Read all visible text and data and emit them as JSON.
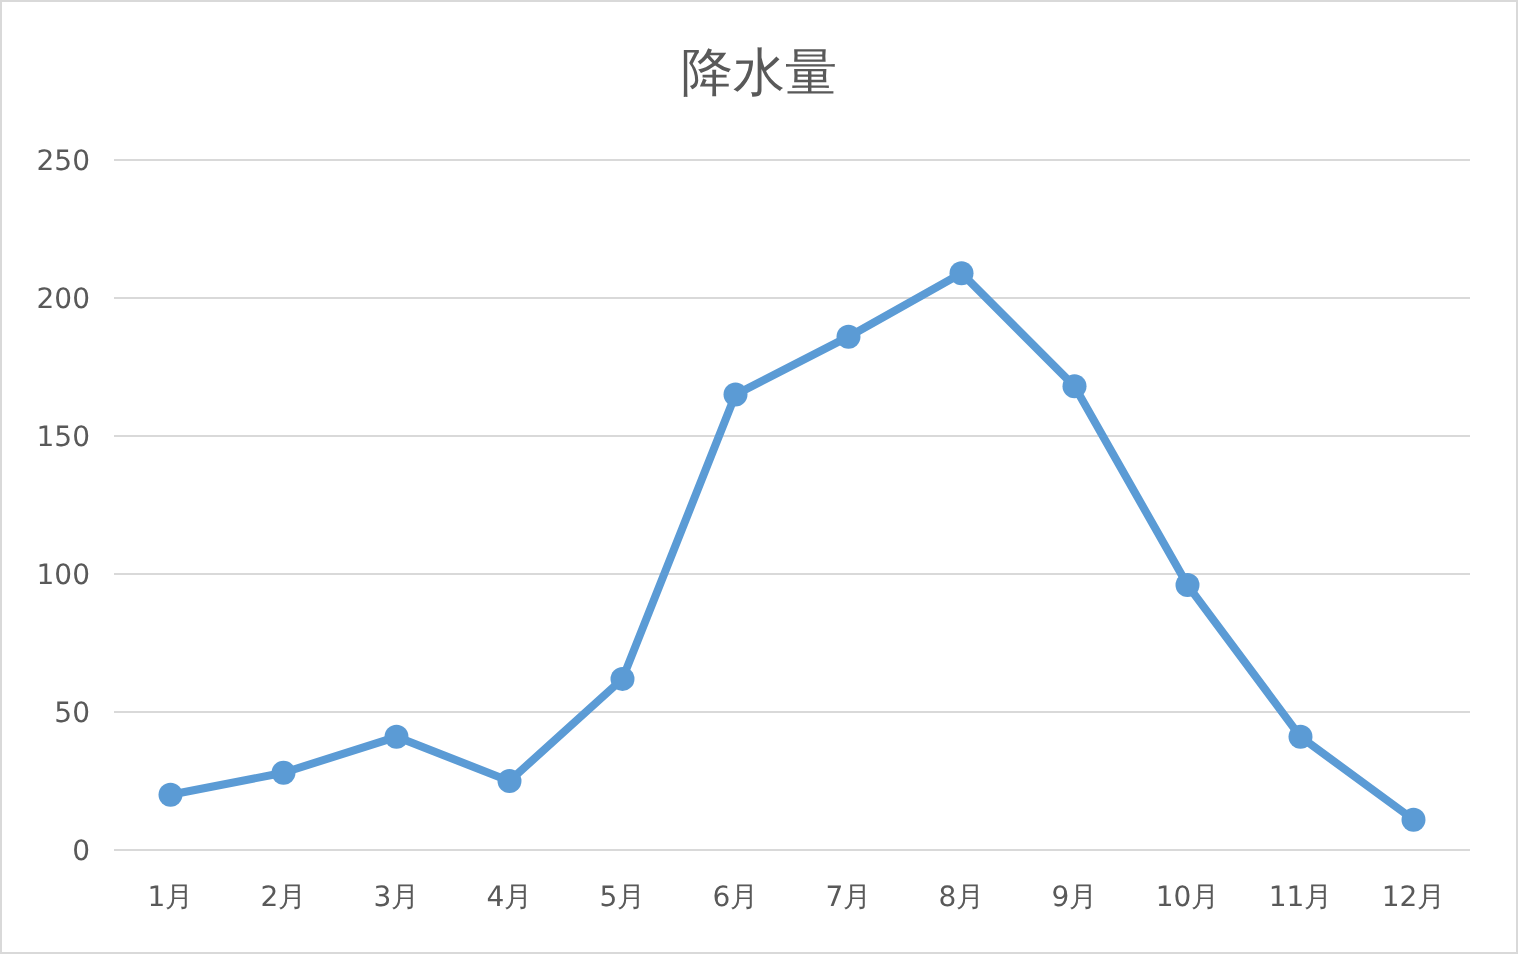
{
  "chart_data": {
    "type": "line",
    "title": "降水量",
    "categories": [
      "1月",
      "2月",
      "3月",
      "4月",
      "5月",
      "6月",
      "7月",
      "8月",
      "9月",
      "10月",
      "11月",
      "12月"
    ],
    "series": [
      {
        "color": "#5b9bd5",
        "values": [
          20,
          28,
          41,
          25,
          62,
          165,
          186,
          209,
          168,
          96,
          41,
          11
        ]
      }
    ],
    "ylim": [
      0,
      250
    ],
    "yticks": [
      0,
      50,
      100,
      150,
      200,
      250
    ],
    "grid": "y",
    "marker": "circle",
    "line_style": "solid"
  }
}
